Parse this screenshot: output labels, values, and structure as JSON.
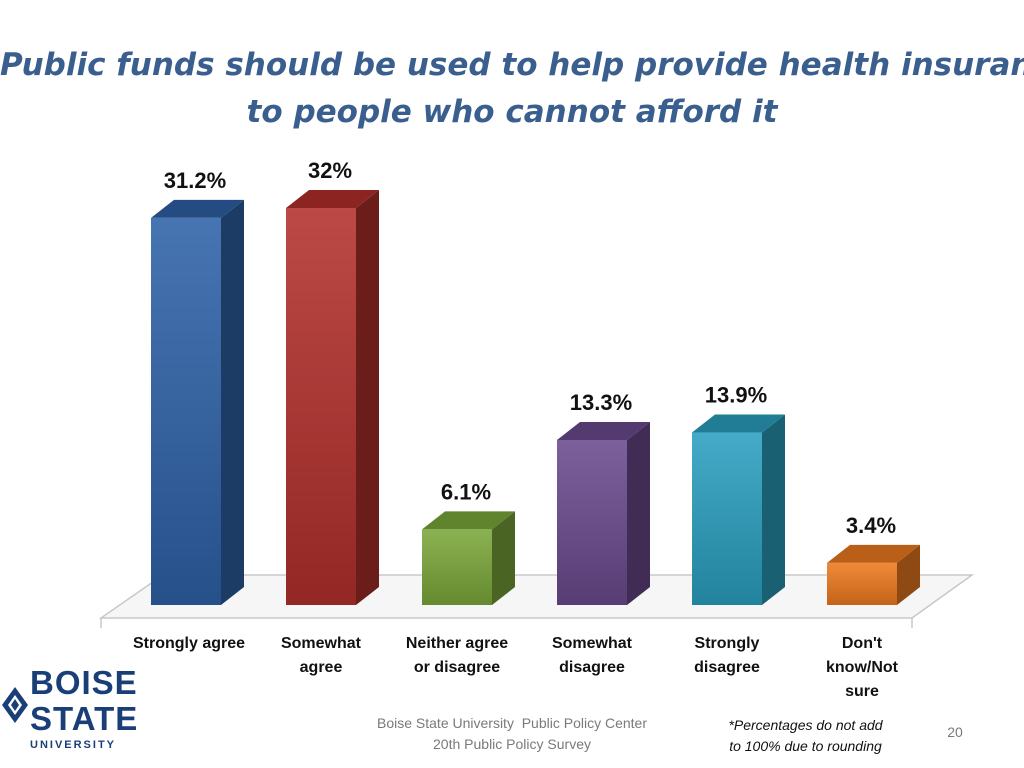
{
  "title": {
    "line1": "Public funds should be used to help provide health insurance",
    "line2": "to people who cannot afford it"
  },
  "chart_data": {
    "type": "bar",
    "categories": [
      "Strongly agree",
      "Somewhat agree",
      "Neither agree or disagree",
      "Somewhat disagree",
      "Strongly disagree",
      "Don't know/Not sure"
    ],
    "category_lines": [
      [
        "Strongly agree"
      ],
      [
        "Somewhat",
        "agree"
      ],
      [
        "Neither agree",
        "or disagree"
      ],
      [
        "Somewhat",
        "disagree"
      ],
      [
        "Strongly",
        "disagree"
      ],
      [
        "Don't",
        "know/Not",
        "sure"
      ]
    ],
    "values": [
      31.2,
      32,
      6.1,
      13.3,
      13.9,
      3.4
    ],
    "data_labels": [
      "31.2%",
      "32%",
      "6.1%",
      "13.3%",
      "13.9%",
      "3.4%"
    ],
    "colors": [
      "#2e62a8",
      "#b3302c",
      "#7ba83a",
      "#6a4a8e",
      "#2aa0c0",
      "#ee7a1e"
    ],
    "ylim": [
      0,
      32
    ],
    "grid": false,
    "legend": false
  },
  "logo": {
    "line1": "BOISE",
    "line2": "STATE",
    "line3": "UNIVERSITY"
  },
  "footer": {
    "line1": "Boise State University  Public Policy Center",
    "line2": "20th Public Policy Survey",
    "note_line1": "*Percentages do not add",
    "note_line2": "to 100% due to rounding",
    "page_number": "20"
  }
}
